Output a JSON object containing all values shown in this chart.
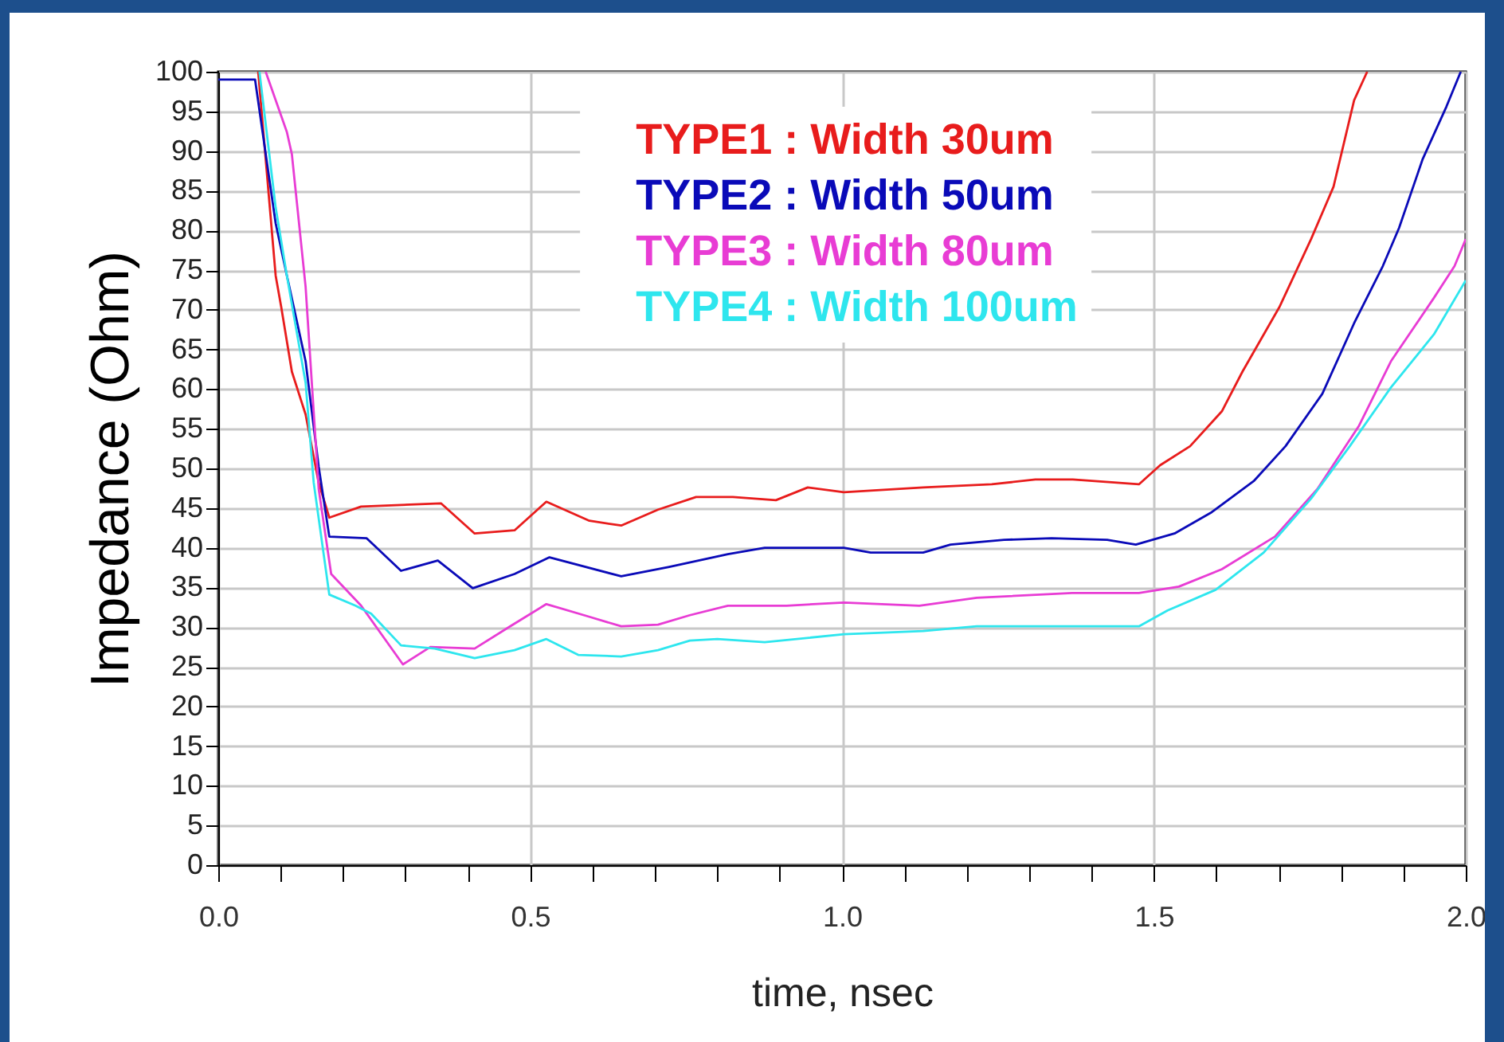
{
  "chart_data": {
    "type": "line",
    "xlabel": "time, nsec",
    "ylabel": "Impedance (Ohm)",
    "xlim": [
      0,
      2
    ],
    "ylim": [
      0,
      100
    ],
    "xticks": [
      {
        "value": 0,
        "label": "0.0"
      },
      {
        "value": 0.1,
        "label": null
      },
      {
        "value": 0.2,
        "label": null
      },
      {
        "value": 0.3,
        "label": null
      },
      {
        "value": 0.4,
        "label": null
      },
      {
        "value": 0.5,
        "label": "0.5"
      },
      {
        "value": 0.6,
        "label": null
      },
      {
        "value": 0.7,
        "label": null
      },
      {
        "value": 0.8,
        "label": null
      },
      {
        "value": 0.9,
        "label": null
      },
      {
        "value": 1,
        "label": "1.0"
      },
      {
        "value": 1.1,
        "label": null
      },
      {
        "value": 1.2,
        "label": null
      },
      {
        "value": 1.3,
        "label": null
      },
      {
        "value": 1.4,
        "label": null
      },
      {
        "value": 1.5,
        "label": "1.5"
      },
      {
        "value": 1.6,
        "label": null
      },
      {
        "value": 1.7,
        "label": null
      },
      {
        "value": 1.8,
        "label": null
      },
      {
        "value": 1.9,
        "label": null
      },
      {
        "value": 2,
        "label": "2.0"
      }
    ],
    "yticks": [
      0,
      5,
      10,
      15,
      20,
      25,
      30,
      35,
      40,
      45,
      50,
      55,
      60,
      65,
      70,
      75,
      80,
      85,
      90,
      95,
      100
    ],
    "grid": true,
    "legend": "top",
    "line_style": "solid",
    "marker": "none",
    "series": [
      {
        "name": "TYPE1 : Width 30um",
        "color": "#e81c1c",
        "x": [
          0.064,
          0.092,
          0.101,
          0.118,
          0.14,
          0.161,
          0.178,
          0.229,
          0.357,
          0.411,
          0.475,
          0.526,
          0.595,
          0.646,
          0.705,
          0.766,
          0.825,
          0.894,
          0.945,
          1.003,
          1.13,
          1.24,
          1.31,
          1.37,
          1.476,
          1.51,
          1.558,
          1.609,
          1.642,
          1.701,
          1.752,
          1.788,
          1.821,
          1.842
        ],
        "values": [
          100,
          74.3,
          70.3,
          62.2,
          56.8,
          48.2,
          43.8,
          45.2,
          45.6,
          41.8,
          42.2,
          45.8,
          43.4,
          42.8,
          44.8,
          46.4,
          46.4,
          46,
          47.6,
          47,
          47.6,
          48,
          48.6,
          48.6,
          48,
          50.4,
          52.8,
          57.2,
          62.2,
          70.3,
          78.9,
          85.5,
          96.4,
          100
        ]
      },
      {
        "name": "TYPE2 : Width 50um",
        "color": "#0a0ab8",
        "x": [
          0,
          0.059,
          0.092,
          0.11,
          0.14,
          0.161,
          0.178,
          0.238,
          0.293,
          0.352,
          0.408,
          0.475,
          0.531,
          0.646,
          0.723,
          0.817,
          0.876,
          1.003,
          1.046,
          1.13,
          1.174,
          1.26,
          1.336,
          1.425,
          1.471,
          1.533,
          1.591,
          1.66,
          1.711,
          1.77,
          1.821,
          1.867,
          1.893,
          1.931,
          1.969,
          1.992
        ],
        "values": [
          99,
          99,
          80.9,
          74.3,
          63.5,
          50.2,
          41.4,
          41.2,
          37.1,
          38.4,
          34.9,
          36.7,
          38.8,
          36.4,
          37.6,
          39.2,
          40,
          40,
          39.4,
          39.4,
          40.4,
          41,
          41.2,
          41,
          40.4,
          41.8,
          44.4,
          48.4,
          52.8,
          59.4,
          68.3,
          75.5,
          80.3,
          89,
          95.6,
          100
        ]
      },
      {
        "name": "TYPE3 : Width 80um",
        "color": "#e83cd4",
        "x": [
          0.076,
          0.11,
          0.118,
          0.14,
          0.161,
          0.181,
          0.229,
          0.296,
          0.34,
          0.411,
          0.472,
          0.526,
          0.595,
          0.646,
          0.705,
          0.756,
          0.817,
          0.911,
          1.003,
          1.124,
          1.216,
          1.369,
          1.476,
          1.54,
          1.609,
          1.694,
          1.762,
          1.829,
          1.88,
          1.949,
          1.982,
          2
        ],
        "values": [
          100,
          92.4,
          89.6,
          72.9,
          47.4,
          36.7,
          32.7,
          25.3,
          27.5,
          27.3,
          30.3,
          32.9,
          31.3,
          30.1,
          30.3,
          31.5,
          32.7,
          32.7,
          33.1,
          32.7,
          33.7,
          34.3,
          34.3,
          35.1,
          37.3,
          41.4,
          47.4,
          55.4,
          63.5,
          71.5,
          75.5,
          78.9
        ]
      },
      {
        "name": "TYPE4 : Width 100um",
        "color": "#2ee6ee",
        "x": [
          0.066,
          0.092,
          0.11,
          0.14,
          0.153,
          0.178,
          0.22,
          0.245,
          0.293,
          0.347,
          0.411,
          0.475,
          0.526,
          0.577,
          0.646,
          0.705,
          0.756,
          0.8,
          0.876,
          1.003,
          1.13,
          1.216,
          1.387,
          1.476,
          1.522,
          1.599,
          1.676,
          1.752,
          1.814,
          1.88,
          1.949,
          2
        ],
        "values": [
          100,
          82.9,
          74.3,
          60.8,
          48.2,
          34.1,
          32.7,
          31.7,
          27.7,
          27.3,
          26.1,
          27.1,
          28.5,
          26.5,
          26.3,
          27.1,
          28.3,
          28.5,
          28.1,
          29.1,
          29.5,
          30.1,
          30.1,
          30.1,
          32.1,
          34.7,
          39.4,
          46.2,
          52.8,
          60.2,
          66.9,
          73.7
        ]
      }
    ]
  }
}
